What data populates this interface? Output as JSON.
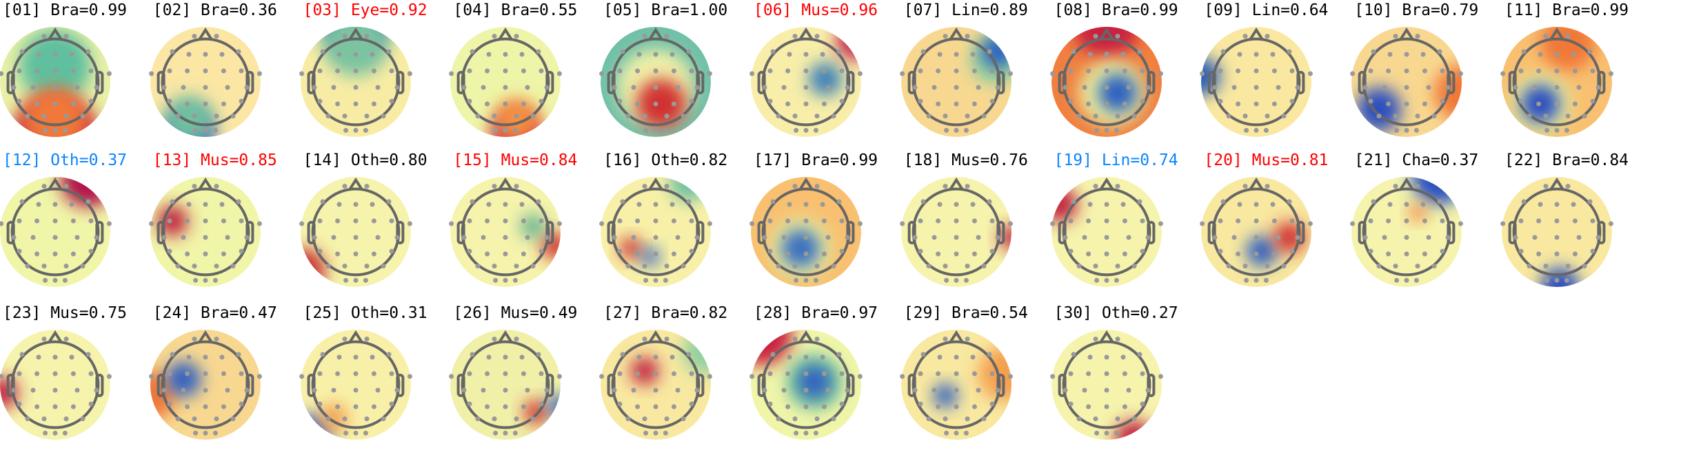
{
  "chart_data": {
    "type": "topomap",
    "label_colors": {
      "default": "#000000",
      "red": "#ff0000",
      "blue": "#0a84ff"
    },
    "components": [
      {
        "label": "[01] Bra=0.99",
        "color": "default",
        "bg": "#e8f0a6",
        "blobs": [
          [
            0,
            -0.3,
            0.65,
            "#5fbf9f"
          ],
          [
            0,
            1.05,
            0.8,
            "#c0224a"
          ],
          [
            0,
            0.7,
            0.6,
            "#f07838"
          ]
        ]
      },
      {
        "label": "[02] Bra=0.36",
        "color": "default",
        "bg": "#fbe6a4",
        "blobs": [
          [
            -0.3,
            0.95,
            0.45,
            "#3050c0"
          ],
          [
            -0.3,
            0.7,
            0.45,
            "#70c0a0"
          ]
        ]
      },
      {
        "label": "[03] Eye=0.92",
        "color": "red",
        "bg": "#f8eca4",
        "blobs": [
          [
            0,
            -1.1,
            0.6,
            "#2a5fb8"
          ],
          [
            0,
            -0.7,
            0.6,
            "#7cc4a0"
          ]
        ]
      },
      {
        "label": "[04] Bra=0.55",
        "color": "default",
        "bg": "#eef5a8",
        "blobs": [
          [
            0.2,
            0.95,
            0.45,
            "#c01848"
          ],
          [
            0.2,
            0.7,
            0.4,
            "#f49040"
          ]
        ]
      },
      {
        "label": "[05] Bra=1.00",
        "color": "default",
        "bg": "#70c0a8",
        "blobs": [
          [
            0,
            0.1,
            0.7,
            "#f0f0a8"
          ],
          [
            0.1,
            0.4,
            0.45,
            "#d03030"
          ]
        ]
      },
      {
        "label": "[06] Mus=0.96",
        "color": "red",
        "bg": "#f8eeaa",
        "blobs": [
          [
            0.35,
            -0.05,
            0.3,
            "#3a80b8"
          ],
          [
            0.9,
            -0.75,
            0.35,
            "#c02050"
          ]
        ]
      },
      {
        "label": "[07] Lin=0.89",
        "color": "default",
        "bg": "#f8d890",
        "blobs": [
          [
            0.7,
            -0.4,
            0.45,
            "#90d0a0"
          ],
          [
            0.75,
            -0.55,
            0.3,
            "#2a60c0"
          ]
        ]
      },
      {
        "label": "[08] Bra=0.99",
        "color": "default",
        "bg": "#f08040",
        "blobs": [
          [
            0,
            -1.05,
            0.6,
            "#c82040"
          ],
          [
            0.1,
            0.2,
            0.6,
            "#e8f0a0"
          ],
          [
            0.2,
            0.2,
            0.35,
            "#2a60c0"
          ]
        ]
      },
      {
        "label": "[09] Lin=0.64",
        "color": "default",
        "bg": "#fae8a0",
        "blobs": [
          [
            -1,
            -0.1,
            0.35,
            "#2a5fb8"
          ]
        ]
      },
      {
        "label": "[10] Bra=0.79",
        "color": "default",
        "bg": "#f8d890",
        "blobs": [
          [
            1,
            0.2,
            0.5,
            "#f07838"
          ],
          [
            -0.5,
            0.5,
            0.4,
            "#2a50c0"
          ]
        ]
      },
      {
        "label": "[11] Bra=0.99",
        "color": "default",
        "bg": "#f8c070",
        "blobs": [
          [
            0.2,
            -0.7,
            0.5,
            "#f07838"
          ],
          [
            -0.3,
            0.4,
            0.55,
            "#e8f0a0"
          ],
          [
            -0.3,
            0.4,
            0.35,
            "#2a50c0"
          ]
        ]
      },
      {
        "label": "[12] Oth=0.37",
        "color": "blue",
        "bg": "#f0f5a8",
        "blobs": [
          [
            0.6,
            -0.95,
            0.5,
            "#b0184a"
          ]
        ]
      },
      {
        "label": "[13] Mus=0.85",
        "color": "red",
        "bg": "#f0f5a8",
        "blobs": [
          [
            -0.6,
            -0.2,
            0.28,
            "#c02040"
          ]
        ]
      },
      {
        "label": "[14] Oth=0.80",
        "color": "default",
        "bg": "#f5f3ac",
        "blobs": [
          [
            -0.95,
            0.7,
            0.4,
            "#c83030"
          ]
        ]
      },
      {
        "label": "[15] Mus=0.84",
        "color": "red",
        "bg": "#f5f3ac",
        "blobs": [
          [
            0.9,
            0.25,
            0.25,
            "#d03030"
          ],
          [
            0.5,
            -0.1,
            0.22,
            "#60b090"
          ]
        ]
      },
      {
        "label": "[16] Oth=0.82",
        "color": "default",
        "bg": "#f8f0a8",
        "blobs": [
          [
            -0.45,
            0.3,
            0.2,
            "#c83030"
          ],
          [
            -0.1,
            0.45,
            0.17,
            "#3060c0"
          ],
          [
            0.6,
            -0.9,
            0.35,
            "#70c0a0"
          ]
        ]
      },
      {
        "label": "[17] Bra=0.99",
        "color": "default",
        "bg": "#f8c070",
        "blobs": [
          [
            -0.1,
            0.3,
            0.55,
            "#e8f0a0"
          ],
          [
            -0.1,
            0.3,
            0.35,
            "#3a70c0"
          ]
        ]
      },
      {
        "label": "[18] Mus=0.76",
        "color": "default",
        "bg": "#f5f3ac",
        "blobs": [
          [
            1,
            0.1,
            0.22,
            "#c02040"
          ]
        ]
      },
      {
        "label": "[19] Lin=0.74",
        "color": "blue",
        "bg": "#f5f3ac",
        "blobs": [
          [
            -0.85,
            -0.5,
            0.32,
            "#c02040"
          ]
        ]
      },
      {
        "label": "[20] Mus=0.81",
        "color": "red",
        "bg": "#f8e8a0",
        "blobs": [
          [
            0.1,
            0.35,
            0.28,
            "#3060c0"
          ],
          [
            0.6,
            0.1,
            0.28,
            "#d03030"
          ]
        ]
      },
      {
        "label": "[21] Cha=0.37",
        "color": "default",
        "bg": "#f5f3ac",
        "blobs": [
          [
            0.6,
            -1,
            0.5,
            "#2a50c0"
          ],
          [
            0.2,
            -0.35,
            0.16,
            "#f08040"
          ]
        ]
      },
      {
        "label": "[22] Bra=0.84",
        "color": "default",
        "bg": "#f8e8a0",
        "blobs": [
          [
            0.05,
            1,
            0.35,
            "#2a50c0"
          ]
        ]
      },
      {
        "label": "[23] Mus=0.75",
        "color": "default",
        "bg": "#f5f3ac",
        "blobs": [
          [
            -0.95,
            0.15,
            0.28,
            "#c02040"
          ]
        ]
      },
      {
        "label": "[24] Bra=0.47",
        "color": "default",
        "bg": "#f8d890",
        "blobs": [
          [
            -1,
            0.2,
            0.45,
            "#f07838"
          ],
          [
            -0.4,
            -0.1,
            0.32,
            "#3060c0"
          ]
        ]
      },
      {
        "label": "[25] Oth=0.31",
        "color": "default",
        "bg": "#f8f0a8",
        "blobs": [
          [
            -0.85,
            0.95,
            0.4,
            "#3050c0"
          ],
          [
            -0.4,
            0.6,
            0.25,
            "#f4a050"
          ]
        ]
      },
      {
        "label": "[26] Mus=0.49",
        "color": "default",
        "bg": "#f0f0a8",
        "blobs": [
          [
            0.55,
            0.5,
            0.22,
            "#d03030"
          ],
          [
            1,
            0.4,
            0.22,
            "#3060c0"
          ]
        ]
      },
      {
        "label": "[27] Bra=0.82",
        "color": "default",
        "bg": "#f8e8a0",
        "blobs": [
          [
            -0.2,
            -0.25,
            0.25,
            "#c02040"
          ],
          [
            0.9,
            -0.6,
            0.4,
            "#90d0a0"
          ]
        ]
      },
      {
        "label": "[28] Bra=0.97",
        "color": "default",
        "bg": "#f0f5a8",
        "blobs": [
          [
            -0.8,
            -0.9,
            0.55,
            "#c82040"
          ],
          [
            0.15,
            -0.05,
            0.5,
            "#70c0a0"
          ],
          [
            0.15,
            -0.05,
            0.3,
            "#3060c0"
          ]
        ]
      },
      {
        "label": "[29] Bra=0.54",
        "color": "default",
        "bg": "#f8e8a0",
        "blobs": [
          [
            0.9,
            -0.2,
            0.5,
            "#f4a050"
          ],
          [
            -0.2,
            0.2,
            0.22,
            "#3060c0"
          ]
        ]
      },
      {
        "label": "[30] Oth=0.27",
        "color": "default",
        "bg": "#f5f3ac",
        "blobs": [
          [
            0.5,
            1,
            0.35,
            "#c02040"
          ]
        ]
      }
    ]
  }
}
